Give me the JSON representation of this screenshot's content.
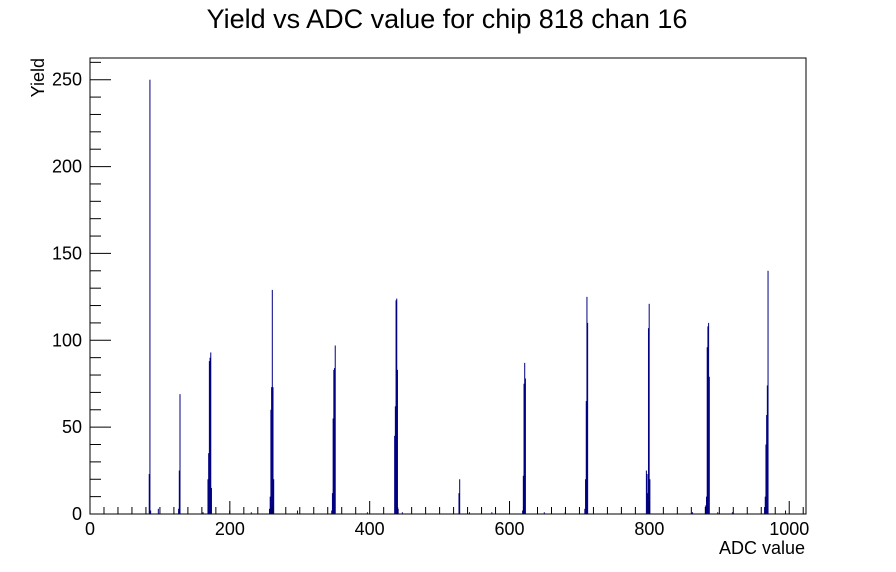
{
  "chart_data": {
    "type": "bar",
    "title": "Yield vs ADC value for chip 818 chan 16",
    "xlabel": "ADC value",
    "ylabel": "Yield",
    "xlim": [
      0,
      1024
    ],
    "ylim": [
      0,
      262.5
    ],
    "x_ticks": [
      0,
      200,
      400,
      600,
      800,
      1000
    ],
    "y_ticks": [
      0,
      50,
      100,
      150,
      200,
      250
    ],
    "grid": false,
    "legend": "none",
    "color": "#000080",
    "series": [
      {
        "x": [
          84,
          85,
          86,
          126,
          127,
          128,
          168,
          169,
          170,
          171,
          172,
          173,
          256,
          257,
          258,
          259,
          260,
          261,
          262,
          345,
          346,
          347,
          348,
          349,
          350,
          435,
          436,
          437,
          438,
          439,
          440,
          527,
          528,
          618,
          619,
          620,
          621,
          622,
          707,
          708,
          709,
          710,
          711,
          795,
          796,
          797,
          798,
          799,
          800,
          880,
          881,
          882,
          883,
          884,
          885,
          964,
          965,
          966,
          967,
          968,
          969,
          97,
          161,
          199,
          230,
          296,
          396,
          446,
          542,
          574,
          649,
          679,
          798,
          861,
          897,
          918,
          994
        ],
        "values": [
          23,
          250,
          2,
          3,
          25,
          69,
          20,
          35,
          88,
          90,
          93,
          15,
          3,
          10,
          60,
          73,
          129,
          73,
          20,
          2,
          12,
          55,
          83,
          84,
          97,
          45,
          62,
          123,
          124,
          83,
          3,
          12,
          20,
          2,
          22,
          75,
          87,
          78,
          3,
          20,
          65,
          125,
          110,
          25,
          23,
          12,
          107,
          121,
          20,
          5,
          10,
          96,
          108,
          110,
          79,
          4,
          10,
          40,
          57,
          74,
          140,
          3,
          1,
          2,
          1,
          2,
          1,
          1,
          1,
          1,
          1,
          1,
          2,
          1,
          1,
          1,
          2
        ]
      }
    ]
  }
}
